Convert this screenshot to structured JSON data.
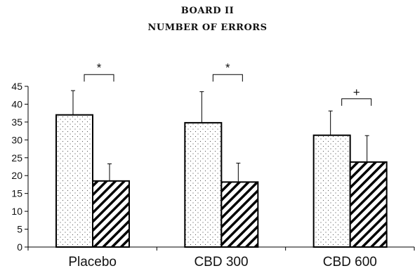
{
  "chart_data": {
    "type": "bar",
    "title": "BOARD II",
    "subtitle": "NUMBER OF ERRORS",
    "xlabel": "",
    "ylabel": "",
    "ylim": [
      0,
      45
    ],
    "yticks": [
      0,
      5,
      10,
      15,
      20,
      25,
      30,
      35,
      40,
      45
    ],
    "categories": [
      "Placebo",
      "CBD 300",
      "CBD 600"
    ],
    "series": [
      {
        "pattern": "dotted",
        "values": [
          37,
          34.8,
          31.3
        ],
        "error": [
          6.8,
          8.7,
          6.8
        ]
      },
      {
        "pattern": "diagonal-hatch",
        "values": [
          18.5,
          18.2,
          23.8
        ],
        "error": [
          4.8,
          5.3,
          7.4
        ]
      }
    ],
    "significance": [
      "*",
      "*",
      "+"
    ],
    "grid": false,
    "legend": "none"
  }
}
